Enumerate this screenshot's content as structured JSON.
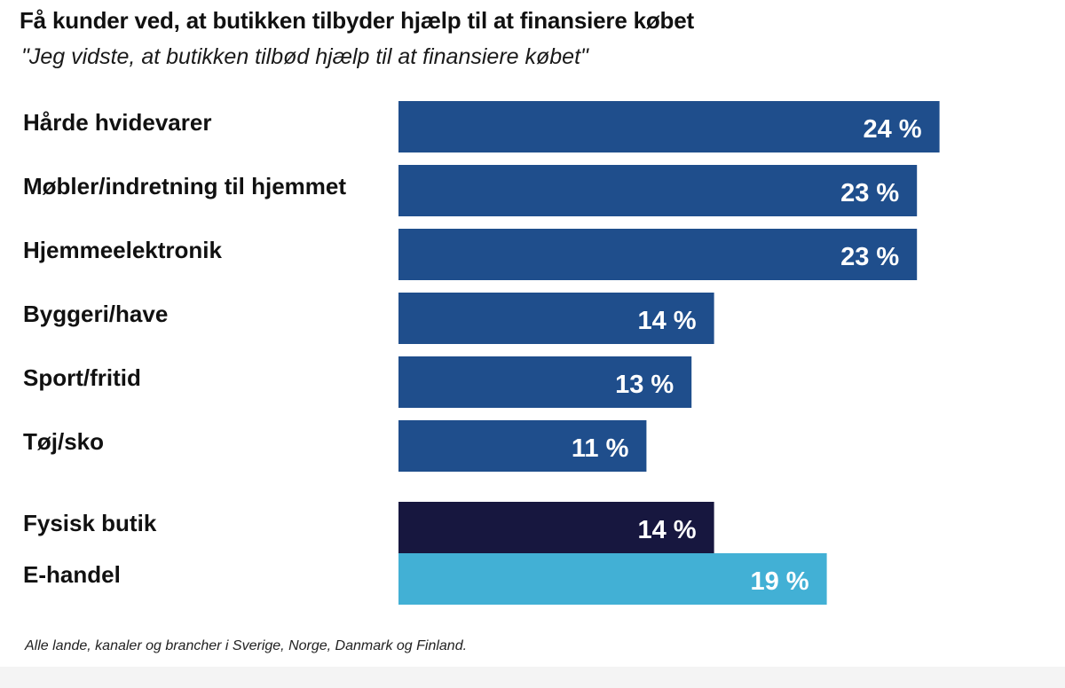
{
  "header": {
    "title": "Få kunder ved, at butikken tilbyder hjælp til at finansiere købet",
    "subtitle": "\"Jeg vidste, at butikken tilbød hjælp til at finansiere købet\""
  },
  "footnote": "Alle lande, kanaler og brancher i Sverige, Norge, Danmark og Finland.",
  "colors": {
    "industry": "#1f4e8c",
    "physical_store": "#17173f",
    "ecommerce": "#42b0d5"
  },
  "chart_data": {
    "type": "bar",
    "orientation": "horizontal",
    "unit": "%",
    "xlim": [
      0,
      24
    ],
    "grid": false,
    "legend": "none",
    "groups": [
      {
        "name": "",
        "categories": [
          "Hårde hvidevarer",
          "Møbler/indretning til hjemmet",
          "Hjemmeelektronik",
          "Byggeri/have",
          "Sport/fritid",
          "Tøj/sko"
        ],
        "values": [
          24,
          23,
          23,
          14,
          13,
          11
        ],
        "value_labels": [
          "24 %",
          "23 %",
          "23 %",
          "14 %",
          "13 %",
          "11 %"
        ],
        "colors": [
          "#1f4e8c",
          "#1f4e8c",
          "#1f4e8c",
          "#1f4e8c",
          "#1f4e8c",
          "#1f4e8c"
        ]
      },
      {
        "name": "",
        "categories": [
          "Fysisk butik",
          "E-handel"
        ],
        "values": [
          14,
          19
        ],
        "value_labels": [
          "14 %",
          "19 %"
        ],
        "colors": [
          "#17173f",
          "#42b0d5"
        ]
      }
    ]
  }
}
